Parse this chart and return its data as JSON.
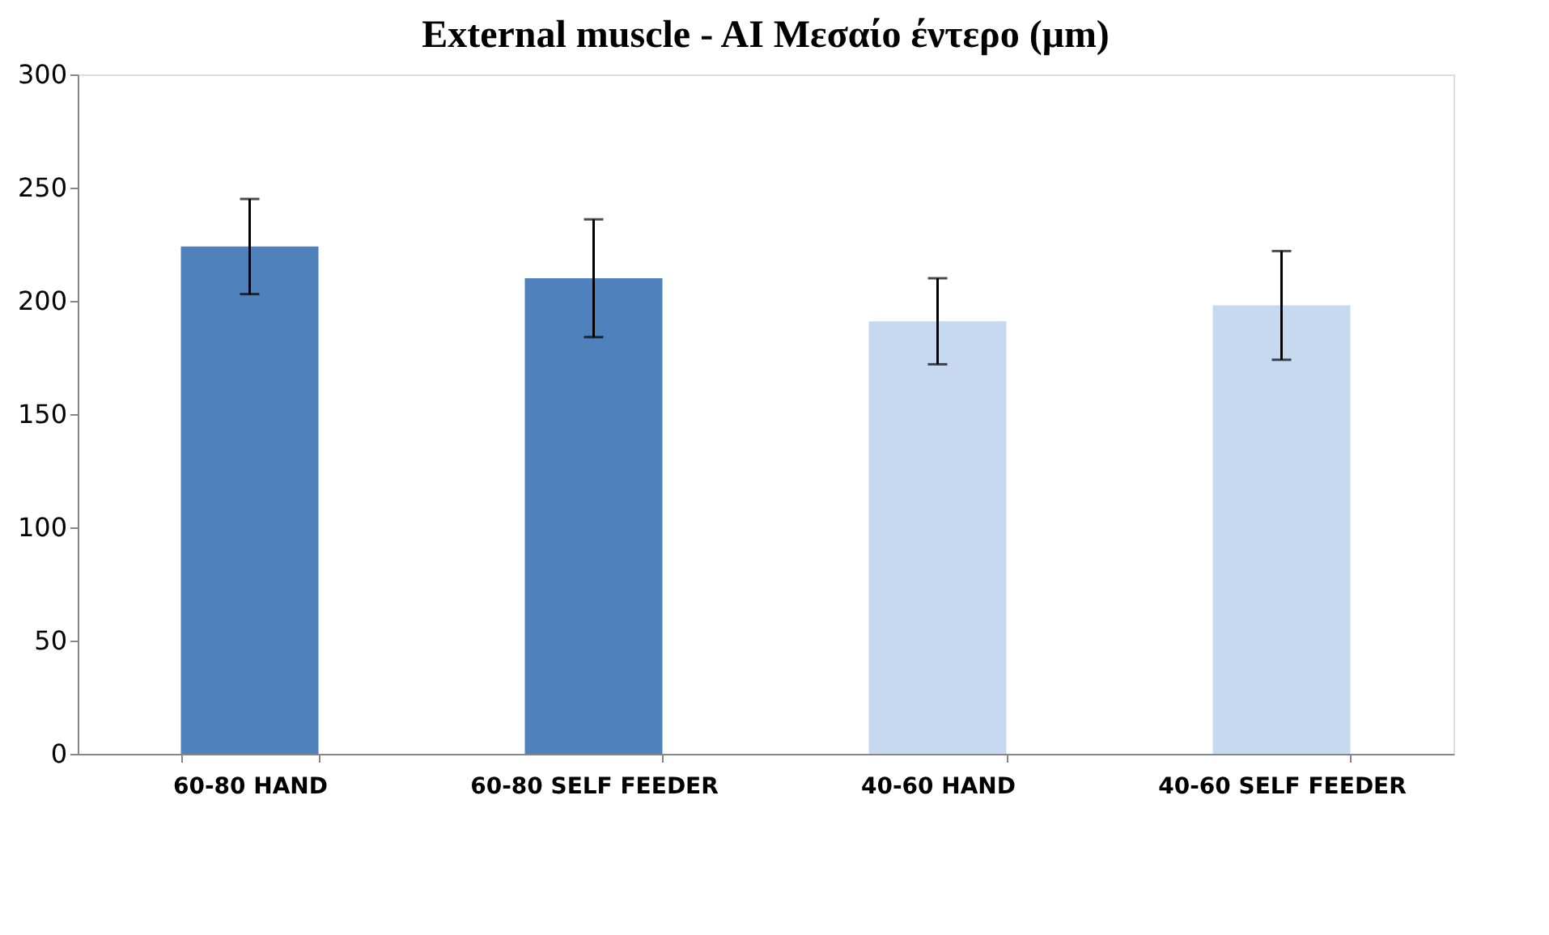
{
  "chart_data": {
    "type": "bar",
    "title": "External muscle - AI Μεσαίο έντερο (μm)",
    "categories": [
      "60-80 HAND",
      "60-80 SELF FEEDER",
      "40-60 HAND",
      "40-60 SELF FEEDER"
    ],
    "values": [
      224,
      210,
      191,
      198
    ],
    "errors": [
      21,
      26,
      19,
      24
    ],
    "colors": [
      "#4f81bd",
      "#4f81bd",
      "#c6d9f1",
      "#c6d9f1"
    ],
    "ylim": [
      0,
      300
    ],
    "yticks": [
      0,
      50,
      100,
      150,
      200,
      250,
      300
    ],
    "grid": false,
    "legend": false
  }
}
